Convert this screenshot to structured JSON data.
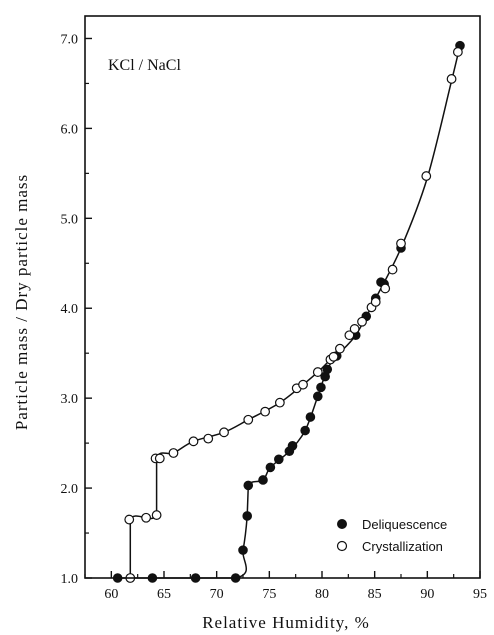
{
  "chart_data": {
    "type": "scatter",
    "annotation": "KCl / NaCl",
    "xlabel": "Relative Humidity,  %",
    "ylabel": "Particle mass / Dry particle mass",
    "xlim": [
      57.5,
      95
    ],
    "ylim": [
      1.0,
      7.25
    ],
    "xticks": [
      "60",
      "65",
      "70",
      "75",
      "80",
      "85",
      "90",
      "95"
    ],
    "yticks": [
      "1.0",
      "2.0",
      "3.0",
      "4.0",
      "5.0",
      "6.0",
      "7.0"
    ],
    "legend_position": "bottom-right",
    "series": [
      {
        "name": "Deliquescence",
        "marker": "filled-circle",
        "points": [
          [
            60.6,
            1.0
          ],
          [
            63.9,
            1.0
          ],
          [
            68.0,
            1.0
          ],
          [
            71.8,
            1.0
          ],
          [
            72.5,
            1.31
          ],
          [
            72.9,
            1.69
          ],
          [
            73.0,
            2.03
          ],
          [
            74.4,
            2.09
          ],
          [
            75.1,
            2.23
          ],
          [
            75.9,
            2.32
          ],
          [
            76.9,
            2.41
          ],
          [
            77.2,
            2.47
          ],
          [
            78.4,
            2.64
          ],
          [
            78.9,
            2.79
          ],
          [
            79.6,
            3.02
          ],
          [
            79.9,
            3.12
          ],
          [
            80.3,
            3.24
          ],
          [
            80.5,
            3.32
          ],
          [
            81.4,
            3.47
          ],
          [
            83.2,
            3.7
          ],
          [
            84.2,
            3.91
          ],
          [
            85.1,
            4.11
          ],
          [
            85.6,
            4.29
          ],
          [
            85.9,
            4.27
          ],
          [
            87.5,
            4.67
          ],
          [
            93.1,
            6.92
          ]
        ],
        "curve": [
          [
            60.6,
            1.0
          ],
          [
            71.8,
            1.0
          ],
          [
            72.5,
            1.31
          ],
          [
            72.9,
            1.69
          ],
          [
            73.0,
            2.03
          ],
          [
            74.4,
            2.09
          ],
          [
            75.1,
            2.23
          ],
          [
            76.9,
            2.41
          ],
          [
            78.4,
            2.64
          ],
          [
            79.6,
            3.02
          ],
          [
            80.5,
            3.32
          ],
          [
            81.4,
            3.47
          ],
          [
            83.2,
            3.7
          ],
          [
            85.1,
            4.11
          ],
          [
            87.5,
            4.67
          ],
          [
            90.0,
            5.45
          ],
          [
            92.3,
            6.53
          ],
          [
            93.1,
            6.92
          ]
        ]
      },
      {
        "name": "Crystallization",
        "marker": "open-circle",
        "points": [
          [
            61.8,
            1.0
          ],
          [
            61.7,
            1.65
          ],
          [
            63.3,
            1.67
          ],
          [
            64.3,
            1.7
          ],
          [
            64.2,
            2.33
          ],
          [
            64.6,
            2.33
          ],
          [
            65.9,
            2.39
          ],
          [
            67.8,
            2.52
          ],
          [
            69.2,
            2.55
          ],
          [
            70.7,
            2.62
          ],
          [
            73.0,
            2.76
          ],
          [
            74.6,
            2.85
          ],
          [
            76.0,
            2.95
          ],
          [
            77.6,
            3.11
          ],
          [
            78.2,
            3.15
          ],
          [
            79.6,
            3.29
          ],
          [
            80.8,
            3.43
          ],
          [
            81.1,
            3.46
          ],
          [
            81.7,
            3.55
          ],
          [
            82.6,
            3.7
          ],
          [
            83.1,
            3.77
          ],
          [
            83.8,
            3.85
          ],
          [
            84.7,
            4.01
          ],
          [
            85.1,
            4.07
          ],
          [
            86.0,
            4.22
          ],
          [
            86.7,
            4.43
          ],
          [
            87.5,
            4.72
          ],
          [
            89.9,
            5.47
          ],
          [
            92.3,
            6.55
          ],
          [
            92.9,
            6.85
          ]
        ],
        "curve": [
          [
            61.8,
            1.0
          ],
          [
            61.8,
            1.65
          ],
          [
            64.3,
            1.7
          ],
          [
            64.3,
            2.33
          ],
          [
            65.9,
            2.39
          ],
          [
            67.8,
            2.52
          ],
          [
            70.7,
            2.62
          ],
          [
            73.0,
            2.76
          ],
          [
            76.0,
            2.95
          ],
          [
            78.2,
            3.15
          ],
          [
            79.6,
            3.29
          ],
          [
            80.8,
            3.43
          ]
        ]
      }
    ]
  }
}
